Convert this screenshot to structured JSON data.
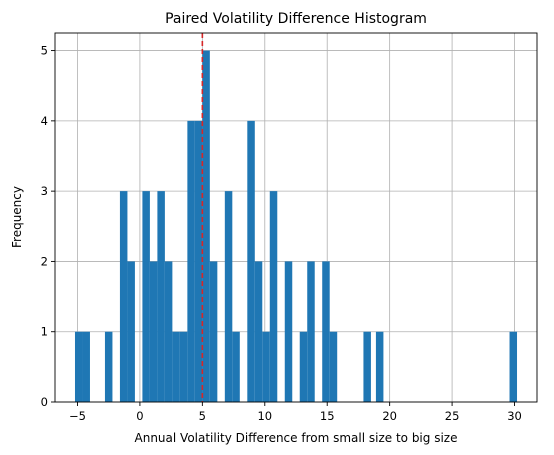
{
  "chart_data": {
    "type": "histogram",
    "title": "Paired Volatility Difference Histogram",
    "xlabel": "Annual Volatility Difference from small size to big size",
    "ylabel": "Frequency",
    "xlim": [
      -6.8,
      31.8
    ],
    "ylim": [
      0,
      5.25
    ],
    "xticks": [
      -5,
      0,
      5,
      10,
      15,
      20,
      25,
      30
    ],
    "yticks": [
      0,
      1,
      2,
      3,
      4,
      5
    ],
    "grid": true,
    "bar_color": "#1f77b4",
    "bin_width": 0.6,
    "bins": [
      {
        "x0": -5.2,
        "count": 1
      },
      {
        "x0": -4.6,
        "count": 1
      },
      {
        "x0": -2.8,
        "count": 1
      },
      {
        "x0": -1.6,
        "count": 3
      },
      {
        "x0": -1.0,
        "count": 2
      },
      {
        "x0": 0.2,
        "count": 3
      },
      {
        "x0": 0.8,
        "count": 2
      },
      {
        "x0": 1.4,
        "count": 3
      },
      {
        "x0": 2.0,
        "count": 2
      },
      {
        "x0": 2.6,
        "count": 1
      },
      {
        "x0": 3.2,
        "count": 1
      },
      {
        "x0": 3.8,
        "count": 4
      },
      {
        "x0": 4.4,
        "count": 4
      },
      {
        "x0": 5.0,
        "count": 5
      },
      {
        "x0": 5.6,
        "count": 2
      },
      {
        "x0": 6.8,
        "count": 3
      },
      {
        "x0": 7.4,
        "count": 1
      },
      {
        "x0": 8.6,
        "count": 4
      },
      {
        "x0": 9.2,
        "count": 2
      },
      {
        "x0": 9.8,
        "count": 1
      },
      {
        "x0": 10.4,
        "count": 3
      },
      {
        "x0": 11.6,
        "count": 2
      },
      {
        "x0": 12.8,
        "count": 1
      },
      {
        "x0": 13.4,
        "count": 2
      },
      {
        "x0": 14.6,
        "count": 2
      },
      {
        "x0": 15.2,
        "count": 1
      },
      {
        "x0": 17.9,
        "count": 1
      },
      {
        "x0": 18.9,
        "count": 1
      },
      {
        "x0": 29.6,
        "count": 1
      }
    ],
    "reference_line": {
      "x": 5.0,
      "color": "#d62728",
      "style": "dashed"
    }
  }
}
